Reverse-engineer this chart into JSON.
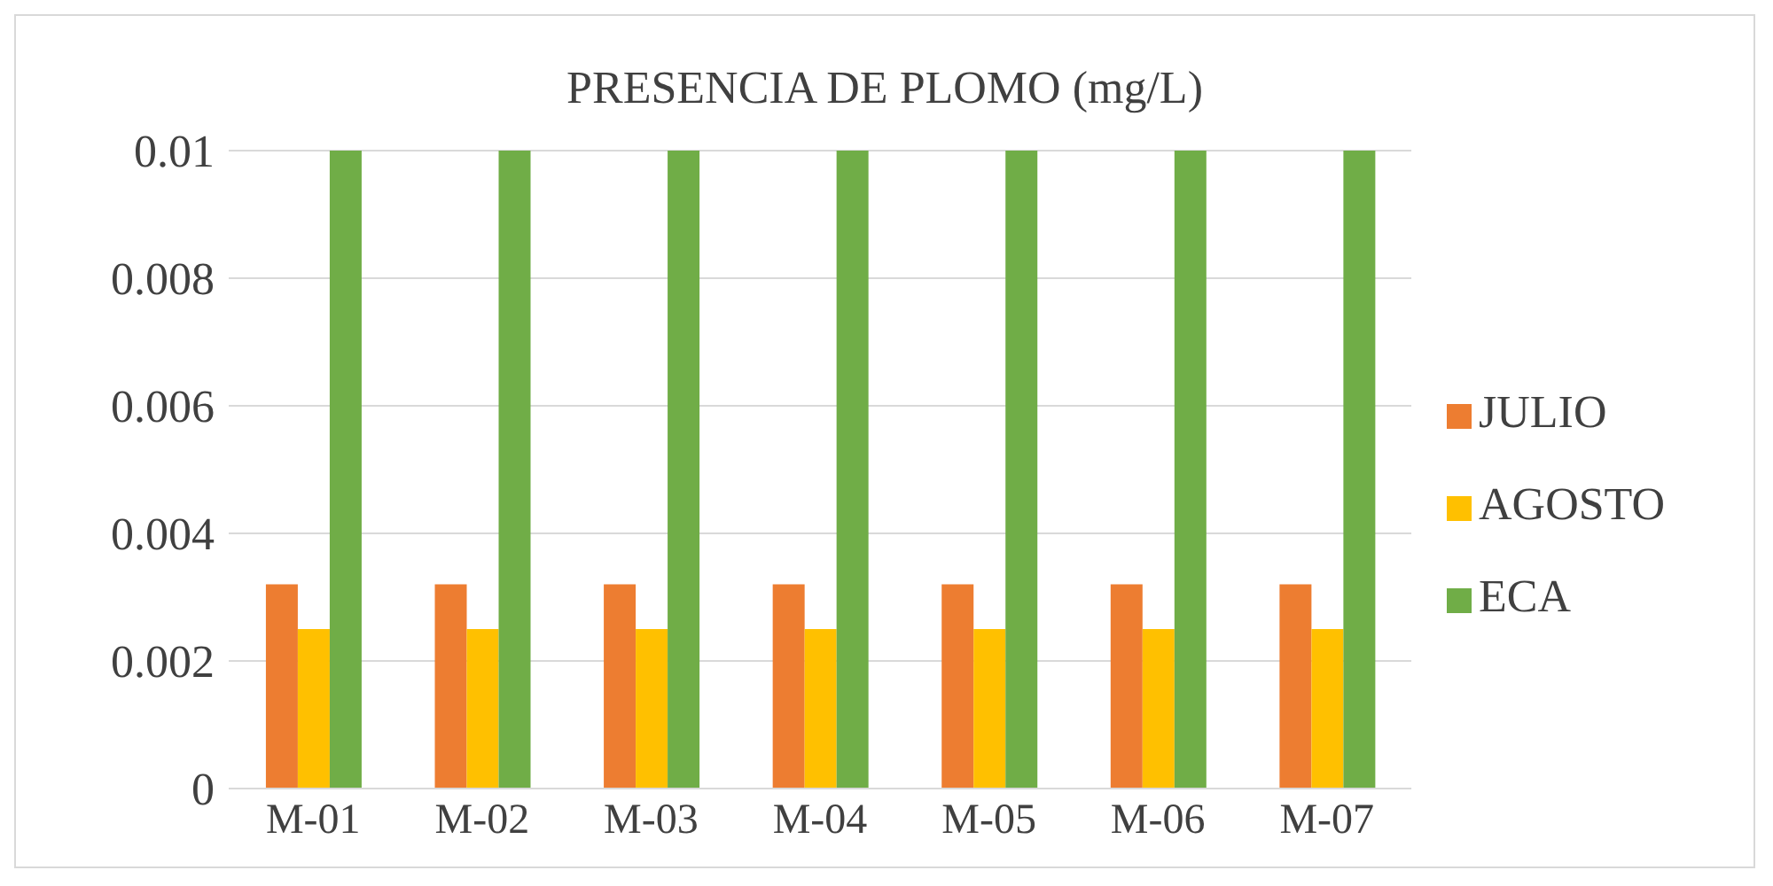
{
  "chart_data": {
    "type": "bar",
    "title": "PRESENCIA DE PLOMO (mg/L)",
    "categories": [
      "M-01",
      "M-02",
      "M-03",
      "M-04",
      "M-05",
      "M-06",
      "M-07"
    ],
    "series": [
      {
        "name": "JULIO",
        "color": "#ed7d31",
        "values": [
          0.0032,
          0.0032,
          0.0032,
          0.0032,
          0.0032,
          0.0032,
          0.0032
        ]
      },
      {
        "name": "AGOSTO",
        "color": "#ffc000",
        "values": [
          0.0025,
          0.0025,
          0.0025,
          0.0025,
          0.0025,
          0.0025,
          0.0025
        ]
      },
      {
        "name": "ECA",
        "color": "#70ad47",
        "values": [
          0.01,
          0.01,
          0.01,
          0.01,
          0.01,
          0.01,
          0.01
        ]
      }
    ],
    "ylim": [
      0,
      0.01
    ],
    "yticks": [
      0,
      0.002,
      0.004,
      0.006,
      0.008,
      0.01
    ],
    "grid": "y",
    "legend": "right"
  }
}
